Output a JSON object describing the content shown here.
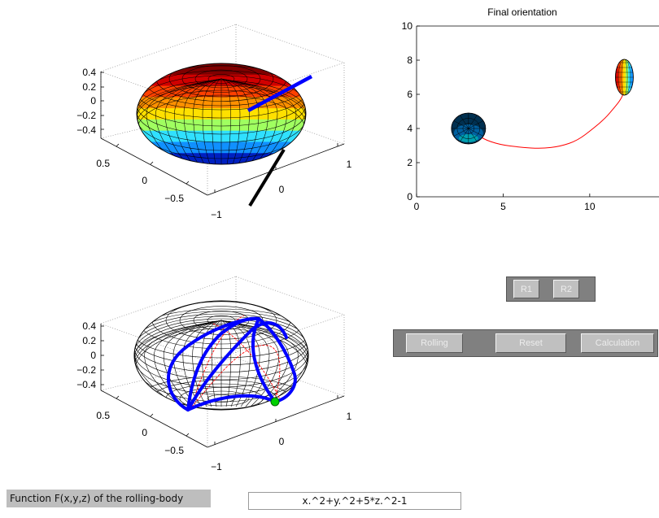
{
  "plot3d_top": {
    "z_ticks": [
      "0.4",
      "0.2",
      "0",
      "−0.2",
      "−0.4"
    ],
    "y_ticks": [
      "0.5",
      "0",
      "−0.5"
    ],
    "x_ticks": [
      "−1",
      "0",
      "1"
    ],
    "colormap": [
      "#7f0000",
      "#d00000",
      "#ff4000",
      "#ff9000",
      "#ffe000",
      "#a0ff60",
      "#30e0ff",
      "#1090ff",
      "#0020c0"
    ],
    "rod_color": "#0000ff",
    "pole_color": "#000000"
  },
  "plot3d_bottom": {
    "z_ticks": [
      "0.4",
      "0.2",
      "0",
      "−0.2",
      "−0.4"
    ],
    "y_ticks": [
      "0.5",
      "0",
      "−0.5"
    ],
    "x_ticks": [
      "−1",
      "0",
      "1"
    ],
    "path_color": "#0000ff",
    "trace_color": "#ff0000",
    "contact_color": "#00d000"
  },
  "chart_data": {
    "type": "line",
    "title": "Final orientation",
    "xlabel": "",
    "ylabel": "",
    "xlim": [
      0,
      14
    ],
    "ylim": [
      0,
      10
    ],
    "x_ticks": [
      "0",
      "5",
      "10"
    ],
    "y_ticks": [
      "0",
      "2",
      "4",
      "6",
      "8",
      "10"
    ],
    "grid": false,
    "series": [
      {
        "color": "#ff0000",
        "x": [
          3.0,
          3.8,
          4.8,
          6.0,
          7.2,
          8.3,
          9.3,
          10.2,
          10.9,
          11.4,
          11.8,
          12.0
        ],
        "y": [
          4.0,
          3.4,
          3.05,
          2.9,
          2.82,
          2.95,
          3.3,
          4.0,
          4.6,
          5.2,
          5.7,
          6.2
        ]
      }
    ],
    "markers": [
      {
        "x": 3.0,
        "y": 4.0,
        "kind": "ellipsoid-top-view"
      },
      {
        "x": 12.0,
        "y": 7.0,
        "kind": "ellipsoid-side-view"
      }
    ]
  },
  "buttons": {
    "r1": "R1",
    "r2": "R2",
    "rolling": "Rolling",
    "reset": "Reset",
    "calculation": "Calculation"
  },
  "function_label": "Function F(x,y,z) of the rolling-body",
  "function_value": "x.^2+y.^2+5*z.^2-1"
}
